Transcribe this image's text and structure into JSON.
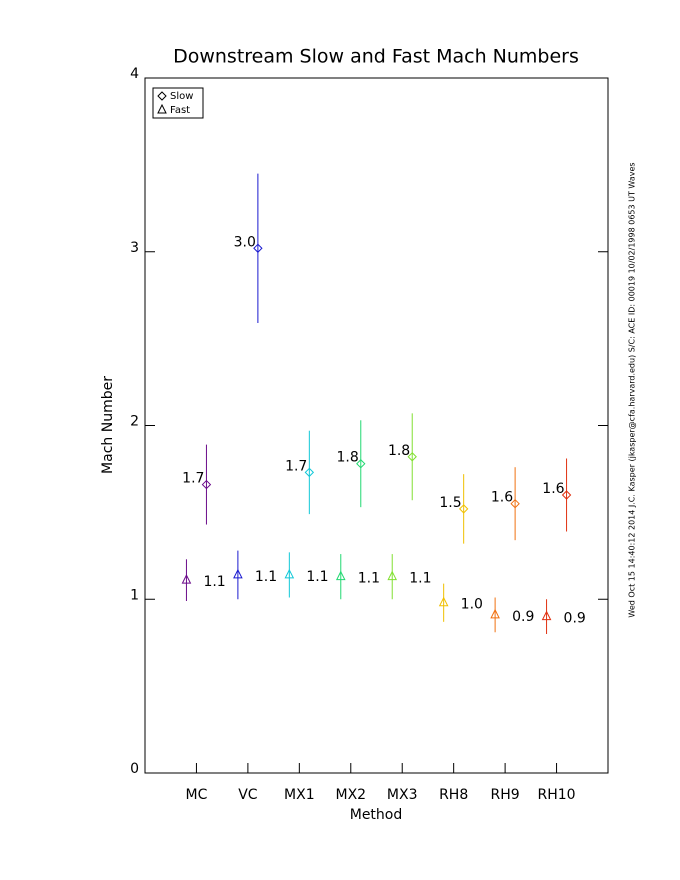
{
  "chart_data": {
    "type": "errorbar",
    "title": "Downstream Slow and Fast Mach Numbers",
    "x_label": "Method",
    "y_label": "Mach Number",
    "side_note": "Wed Oct 15 14:40:12 2014   J.C. Kasper (jkasper@cfa.harvard.edu)   S/C: ACE ID: 00019 10/02/1998   0653 UT Waves",
    "categories": [
      "MC",
      "VC",
      "MX1",
      "MX2",
      "MX3",
      "RH8",
      "RH9",
      "RH10"
    ],
    "colors": [
      "#6a0a8a",
      "#1a1ad0",
      "#10c8d8",
      "#20d870",
      "#80e030",
      "#f0c000",
      "#f07010",
      "#e03010"
    ],
    "series": [
      {
        "name": "Slow",
        "marker": "diamond",
        "values": [
          1.66,
          3.02,
          1.73,
          1.78,
          1.82,
          1.52,
          1.55,
          1.6
        ],
        "errors": [
          0.23,
          0.43,
          0.24,
          0.25,
          0.25,
          0.2,
          0.21,
          0.21
        ],
        "value_labels": [
          "1.7",
          "3.0",
          "1.7",
          "1.8",
          "1.8",
          "1.5",
          "1.6",
          "1.6"
        ]
      },
      {
        "name": "Fast",
        "marker": "triangle",
        "values": [
          1.11,
          1.14,
          1.14,
          1.13,
          1.13,
          0.98,
          0.91,
          0.9
        ],
        "errors": [
          0.12,
          0.14,
          0.13,
          0.13,
          0.13,
          0.11,
          0.1,
          0.1
        ],
        "value_labels": [
          "1.1",
          "1.1",
          "1.1",
          "1.1",
          "1.1",
          "1.0",
          "0.9",
          "0.9"
        ]
      }
    ],
    "ylim": [
      0,
      4
    ],
    "yticks": [
      0,
      1,
      2,
      3,
      4
    ],
    "legend": "upper left"
  }
}
